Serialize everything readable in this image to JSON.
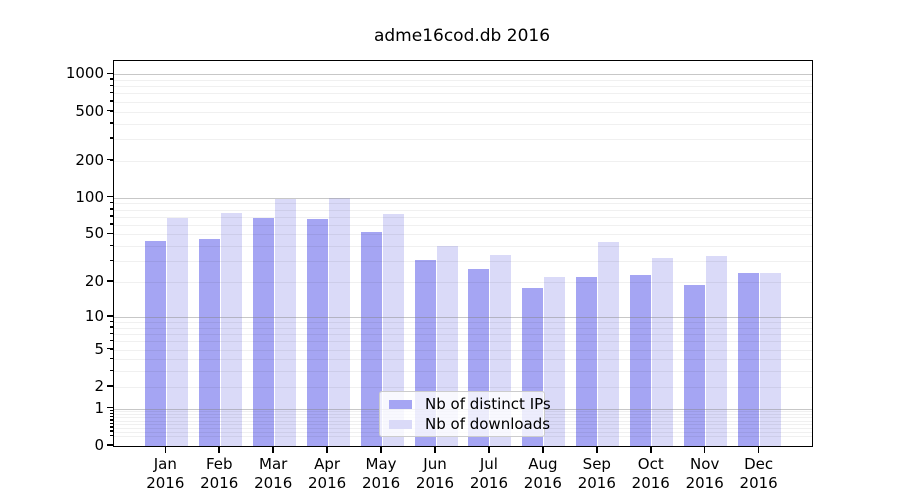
{
  "figure": {
    "title": "adme16cod.db 2016"
  },
  "chart_data": {
    "type": "bar",
    "title": "adme16cod.db 2016",
    "categories": [
      "Jan",
      "Feb",
      "Mar",
      "Apr",
      "May",
      "Jun",
      "Jul",
      "Aug",
      "Sep",
      "Oct",
      "Nov",
      "Dec"
    ],
    "year": "2016",
    "series": [
      {
        "name": "Nb of distinct IPs",
        "color": "#a5a5f3",
        "values": [
          44,
          46,
          68,
          67,
          52,
          31,
          26,
          18,
          22,
          23,
          19,
          24
        ]
      },
      {
        "name": "Nb of downloads",
        "color": "#dadaf8",
        "values": [
          68,
          75,
          98,
          100,
          73,
          40,
          34,
          22,
          43,
          32,
          33,
          24
        ]
      }
    ],
    "xlabel": "",
    "ylabel": "",
    "yscale": "log1p",
    "ylim": [
      0,
      1280
    ],
    "ytick_values": [
      1000,
      500,
      200,
      100,
      50,
      20,
      10,
      5,
      2,
      1,
      0
    ],
    "ytick_labels": [
      "1000",
      "500",
      "200",
      "100",
      "50",
      "20",
      "10",
      "5",
      "2",
      "1",
      "0"
    ],
    "grid": true,
    "legend_position": "lower center"
  }
}
